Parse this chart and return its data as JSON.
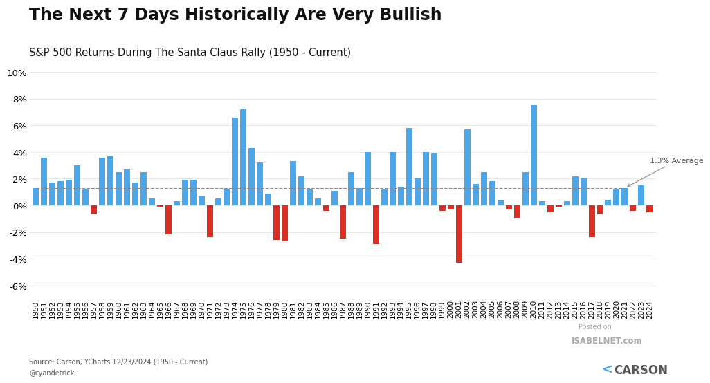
{
  "title": "The Next 7 Days Historically Are Very Bullish",
  "subtitle": "S&P 500 Returns During The Santa Claus Rally (1950 - Current)",
  "source_line1": "Source: Carson, YCharts 12/23/2024 (1950 - Current)",
  "source_line2": "@ryandetrick",
  "watermark_line1": "Posted on",
  "watermark_line2": "ISABELNET.com",
  "average_label": "1.3% Average",
  "average_value": 1.3,
  "years": [
    1950,
    1951,
    1952,
    1953,
    1954,
    1955,
    1956,
    1957,
    1958,
    1959,
    1960,
    1961,
    1962,
    1963,
    1964,
    1965,
    1966,
    1967,
    1968,
    1969,
    1970,
    1971,
    1972,
    1973,
    1974,
    1975,
    1976,
    1977,
    1978,
    1979,
    1980,
    1981,
    1982,
    1983,
    1984,
    1985,
    1986,
    1987,
    1988,
    1989,
    1990,
    1991,
    1992,
    1993,
    1994,
    1995,
    1996,
    1997,
    1998,
    1999,
    2000,
    2001,
    2002,
    2003,
    2004,
    2005,
    2006,
    2007,
    2008,
    2009,
    2010,
    2011,
    2012,
    2013,
    2014,
    2015,
    2016,
    2017,
    2018,
    2019,
    2020,
    2021,
    2022,
    2023,
    2024
  ],
  "values": [
    1.3,
    3.6,
    1.7,
    1.8,
    1.9,
    3.0,
    1.2,
    -0.7,
    3.6,
    3.7,
    2.5,
    2.7,
    1.7,
    2.5,
    0.5,
    -0.1,
    -2.2,
    0.3,
    1.9,
    1.9,
    0.7,
    -2.4,
    0.5,
    1.2,
    6.6,
    7.2,
    4.3,
    3.2,
    0.9,
    -2.6,
    -2.7,
    3.3,
    2.2,
    1.2,
    0.5,
    -0.4,
    1.1,
    -2.5,
    2.5,
    1.3,
    4.0,
    -2.9,
    1.2,
    4.0,
    1.4,
    5.8,
    2.0,
    4.0,
    3.9,
    -0.4,
    -0.3,
    -4.3,
    5.7,
    1.6,
    2.5,
    1.8,
    0.4,
    -0.3,
    -1.0,
    2.5,
    7.5,
    0.3,
    -0.5,
    -0.1,
    0.3,
    2.2,
    2.0,
    -2.4,
    -0.7,
    0.4,
    1.2,
    1.3,
    -0.4,
    1.5,
    -0.5
  ],
  "blue_color": "#4DA6E8",
  "red_color": "#D93025",
  "avg_line_color": "#888888",
  "background_color": "#FFFFFF",
  "ylim": [
    -7.0,
    11.0
  ],
  "yticks": [
    -6,
    -4,
    -2,
    0,
    2,
    4,
    6,
    8,
    10
  ],
  "ytick_labels": [
    "-6%",
    "-4%",
    "-2%",
    "0%",
    "2%",
    "4%",
    "6%",
    "8%",
    "10%"
  ]
}
